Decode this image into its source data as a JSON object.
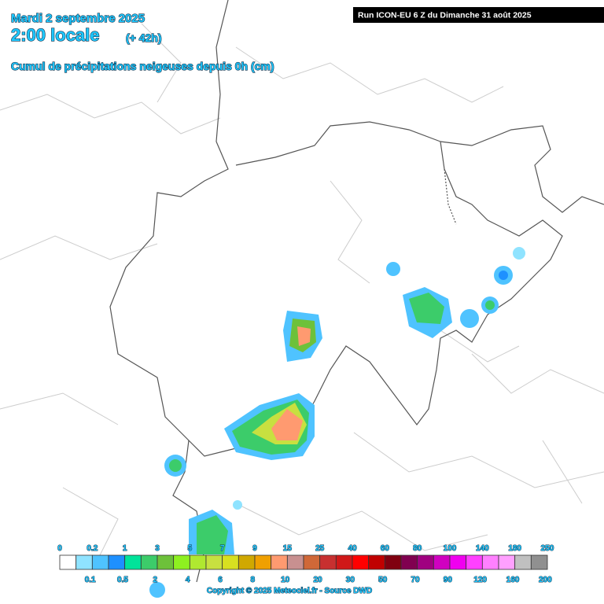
{
  "header": {
    "date": "Mardi 2 septembre 2025",
    "time": "2:00 locale",
    "offset": "(+ 42h)",
    "subtitle": "Cumul de précipitations neigeuses depuis 0h (cm)",
    "run": "Run ICON-EU 6 Z du Dimanche 31 août 2025"
  },
  "legend": {
    "boundaries": [
      0,
      0.1,
      0.2,
      0.5,
      1,
      2,
      3,
      4,
      5,
      6,
      7,
      8,
      9,
      10,
      15,
      20,
      25,
      30,
      40,
      50,
      60,
      70,
      80,
      90,
      100,
      120,
      140,
      160,
      180,
      200,
      250
    ],
    "colors": [
      "#ffffff",
      "#8fe3ff",
      "#4fc3ff",
      "#1e90ff",
      "#00e39a",
      "#3ccc6a",
      "#6dc13a",
      "#8ef020",
      "#b0e830",
      "#c8e040",
      "#d8e020",
      "#d0a800",
      "#f0a000",
      "#ff9a70",
      "#c89090",
      "#d06838",
      "#c83030",
      "#d01818",
      "#ff0000",
      "#c00000",
      "#800010",
      "#800050",
      "#a00080",
      "#d000c0",
      "#f000f0",
      "#ff40ff",
      "#ff80ff",
      "#ffa0ff",
      "#c0c0c0",
      "#909090"
    ]
  },
  "copyright": "Copyright © 2025 Meteociel.fr - Source DWD"
}
